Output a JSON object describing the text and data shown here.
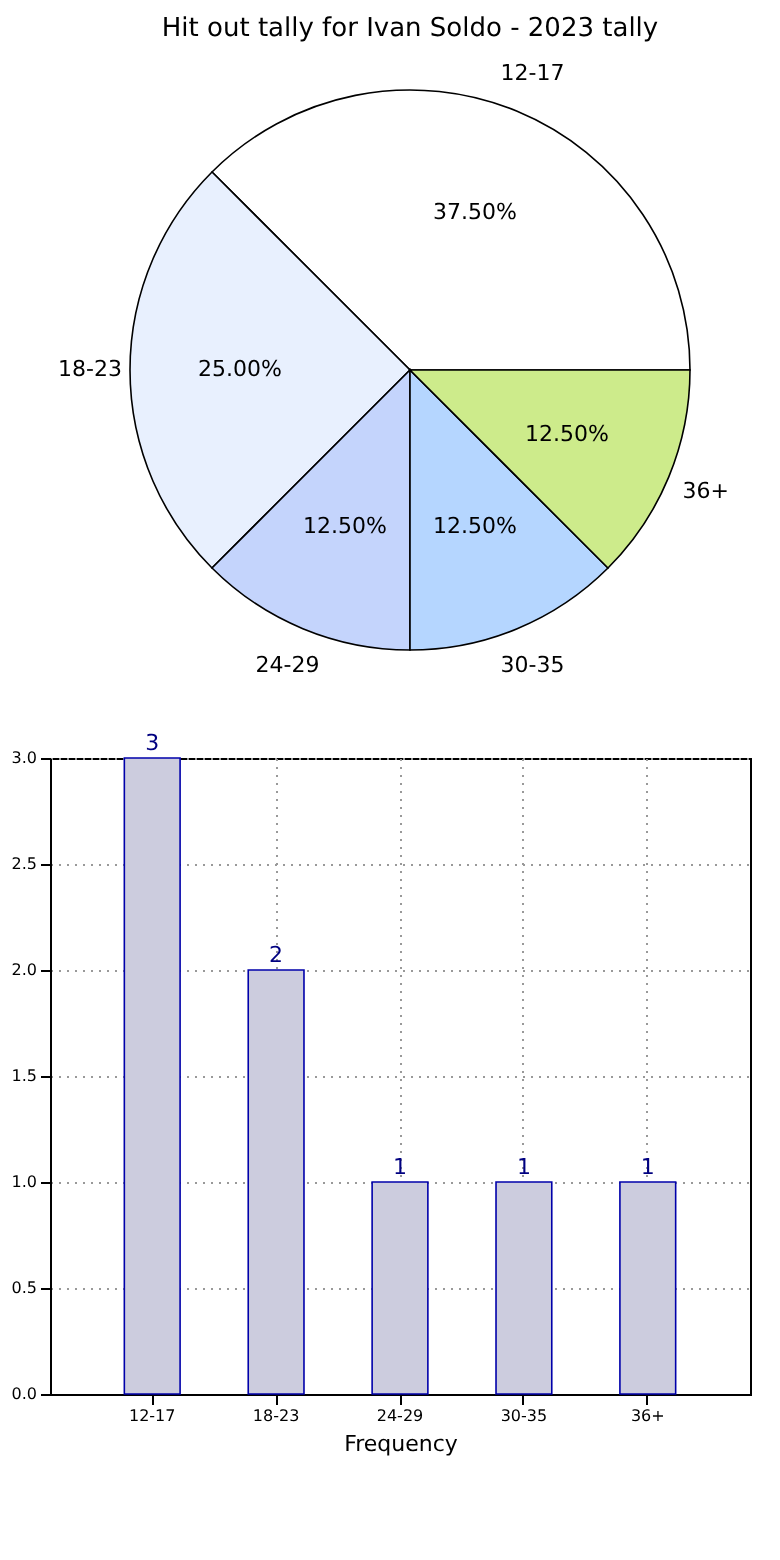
{
  "chart_data": [
    {
      "type": "pie",
      "title": "Hit out tally for Ivan Soldo - 2023 tally",
      "categories": [
        "12-17",
        "18-23",
        "24-29",
        "30-35",
        "36+"
      ],
      "values": [
        37.5,
        25,
        12.5,
        12.5,
        12.5
      ],
      "colors": [
        "#ffffff",
        "#e8f0fe",
        "#c4d4fc",
        "#b5d6ff",
        "#cdeb8b"
      ],
      "value_labels": [
        "37.50%",
        "25.00%",
        "12.50%",
        "12.50%",
        "12.50%"
      ]
    },
    {
      "type": "bar",
      "xlabel": "Frequency",
      "categories": [
        "12-17",
        "18-23",
        "24-29",
        "30-35",
        "36+"
      ],
      "values": [
        3,
        2,
        1,
        1,
        1
      ],
      "color": "#ccccde",
      "ylim": [
        0,
        3
      ],
      "yticks": [
        {
          "value": 0,
          "label": "0.0"
        },
        {
          "value": 0.5,
          "label": "0.5"
        },
        {
          "value": 1,
          "label": "1.0"
        },
        {
          "value": 1.5,
          "label": "1.5"
        },
        {
          "value": 2,
          "label": "2.0"
        },
        {
          "value": 2.5,
          "label": "2.5"
        },
        {
          "value": 3,
          "label": "3.0"
        }
      ],
      "grid": true,
      "data_labels": true
    }
  ]
}
